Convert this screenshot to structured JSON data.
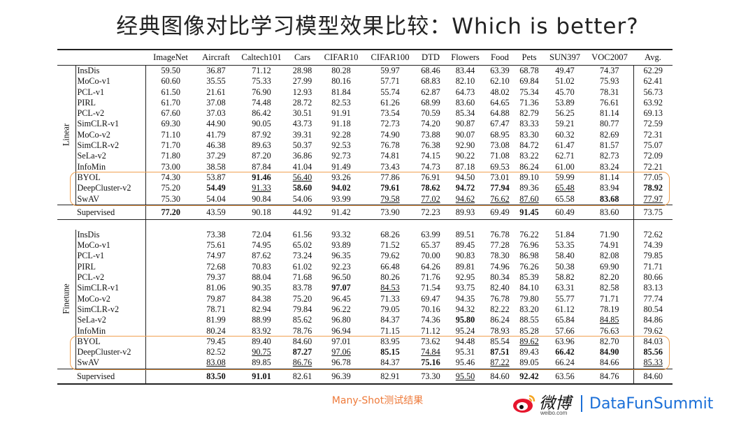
{
  "title": "经典图像对比学习模型效果比较：Which is better?",
  "table": {
    "headers": [
      "",
      "",
      "ImageNet",
      "Aircraft",
      "Caltech101",
      "Cars",
      "CIFAR10",
      "CIFAR100",
      "DTD",
      "Flowers",
      "Food",
      "Pets",
      "SUN397",
      "VOC2007",
      "Avg."
    ],
    "linear": {
      "group_label": "Linear",
      "rows": [
        {
          "method": "InsDis",
          "values": [
            "59.50",
            "36.87",
            "71.12",
            "28.98",
            "80.28",
            "59.97",
            "68.46",
            "83.44",
            "63.39",
            "68.78",
            "49.47",
            "74.37",
            "62.29"
          ]
        },
        {
          "method": "MoCo-v1",
          "values": [
            "60.60",
            "35.55",
            "75.33",
            "27.99",
            "80.16",
            "57.71",
            "68.83",
            "82.10",
            "62.10",
            "69.84",
            "51.02",
            "75.93",
            "62.41"
          ]
        },
        {
          "method": "PCL-v1",
          "values": [
            "61.50",
            "21.61",
            "76.90",
            "12.93",
            "81.84",
            "55.74",
            "62.87",
            "64.73",
            "48.02",
            "75.34",
            "45.70",
            "78.31",
            "56.73"
          ]
        },
        {
          "method": "PIRL",
          "values": [
            "61.70",
            "37.08",
            "74.48",
            "28.72",
            "82.53",
            "61.26",
            "68.99",
            "83.60",
            "64.65",
            "71.36",
            "53.89",
            "76.61",
            "63.92"
          ]
        },
        {
          "method": "PCL-v2",
          "values": [
            "67.60",
            "37.03",
            "86.42",
            "30.51",
            "91.91",
            "73.54",
            "70.59",
            "85.34",
            "64.88",
            "82.79",
            "56.25",
            "81.14",
            "69.13"
          ]
        },
        {
          "method": "SimCLR-v1",
          "values": [
            "69.30",
            "44.90",
            "90.05",
            "43.73",
            "91.18",
            "72.73",
            "74.20",
            "90.87",
            "67.47",
            "83.33",
            "59.21",
            "80.77",
            "72.59"
          ]
        },
        {
          "method": "MoCo-v2",
          "values": [
            "71.10",
            "41.79",
            "87.92",
            "39.31",
            "92.28",
            "74.90",
            "73.88",
            "90.07",
            "68.95",
            "83.30",
            "60.32",
            "82.69",
            "72.31"
          ]
        },
        {
          "method": "SimCLR-v2",
          "values": [
            "71.70",
            "46.38",
            "89.63",
            "50.37",
            "92.53",
            "76.78",
            "76.38",
            "92.90",
            "73.08",
            "84.72",
            "61.47",
            "81.57",
            "75.07"
          ]
        },
        {
          "method": "SeLa-v2",
          "values": [
            "71.80",
            "37.29",
            "87.20",
            "36.86",
            "92.73",
            "74.81",
            "74.15",
            "90.22",
            "71.08",
            "83.22",
            "62.71",
            "82.73",
            "72.09"
          ]
        },
        {
          "method": "InfoMin",
          "values": [
            "73.00",
            "38.58",
            "87.84",
            "41.04",
            "91.49",
            "73.43",
            "74.73",
            "87.18",
            "69.53",
            "86.24",
            "61.00",
            "83.24",
            "72.21"
          ]
        },
        {
          "method": "BYOL",
          "values": [
            "74.30",
            "53.87",
            "91.46",
            "56.40",
            "93.26",
            "77.86",
            "76.91",
            "94.50",
            "73.01",
            "89.10",
            "59.99",
            "81.14",
            "77.05"
          ]
        },
        {
          "method": "DeepCluster-v2",
          "values": [
            "75.20",
            "54.49",
            "91.33",
            "58.60",
            "94.02",
            "79.61",
            "78.62",
            "94.72",
            "77.94",
            "89.36",
            "65.48",
            "83.94",
            "78.92"
          ]
        },
        {
          "method": "SwAV",
          "values": [
            "75.30",
            "54.04",
            "90.84",
            "54.06",
            "93.99",
            "79.58",
            "77.02",
            "94.62",
            "76.62",
            "87.60",
            "65.58",
            "83.68",
            "77.97"
          ]
        }
      ],
      "supervised": {
        "method": "Supervised",
        "values": [
          "77.20",
          "43.59",
          "90.18",
          "44.92",
          "91.42",
          "73.90",
          "72.23",
          "89.93",
          "69.49",
          "91.45",
          "60.49",
          "83.60",
          "73.75"
        ]
      }
    },
    "finetune": {
      "group_label": "Finetune",
      "rows": [
        {
          "method": "InsDis",
          "values": [
            "",
            "73.38",
            "72.04",
            "61.56",
            "93.32",
            "68.26",
            "63.99",
            "89.51",
            "76.78",
            "76.22",
            "51.84",
            "71.90",
            "72.62"
          ]
        },
        {
          "method": "MoCo-v1",
          "values": [
            "",
            "75.61",
            "74.95",
            "65.02",
            "93.89",
            "71.52",
            "65.37",
            "89.45",
            "77.28",
            "76.96",
            "53.35",
            "74.91",
            "74.39"
          ]
        },
        {
          "method": "PCL-v1",
          "values": [
            "",
            "74.97",
            "87.62",
            "73.24",
            "96.35",
            "79.62",
            "70.00",
            "90.83",
            "78.30",
            "86.98",
            "58.40",
            "82.08",
            "79.85"
          ]
        },
        {
          "method": "PIRL",
          "values": [
            "",
            "72.68",
            "70.83",
            "61.02",
            "92.23",
            "66.48",
            "64.26",
            "89.81",
            "74.96",
            "76.26",
            "50.38",
            "69.90",
            "71.71"
          ]
        },
        {
          "method": "PCL-v2",
          "values": [
            "",
            "79.37",
            "88.04",
            "71.68",
            "96.50",
            "80.26",
            "71.76",
            "92.95",
            "80.34",
            "85.39",
            "58.82",
            "82.20",
            "80.66"
          ]
        },
        {
          "method": "SimCLR-v1",
          "values": [
            "",
            "81.06",
            "90.35",
            "83.78",
            "97.07",
            "84.53",
            "71.54",
            "93.75",
            "82.40",
            "84.10",
            "63.31",
            "82.58",
            "83.13"
          ]
        },
        {
          "method": "MoCo-v2",
          "values": [
            "",
            "79.87",
            "84.38",
            "75.20",
            "96.45",
            "71.33",
            "69.47",
            "94.35",
            "76.78",
            "79.80",
            "55.77",
            "71.71",
            "77.74"
          ]
        },
        {
          "method": "SimCLR-v2",
          "values": [
            "",
            "78.71",
            "82.94",
            "79.84",
            "96.22",
            "79.05",
            "70.16",
            "94.32",
            "82.22",
            "83.20",
            "61.12",
            "78.19",
            "80.54"
          ]
        },
        {
          "method": "SeLa-v2",
          "values": [
            "",
            "81.99",
            "88.99",
            "85.62",
            "96.80",
            "84.37",
            "74.36",
            "95.80",
            "86.24",
            "88.55",
            "65.84",
            "84.85",
            "84.86"
          ]
        },
        {
          "method": "InfoMin",
          "values": [
            "",
            "80.24",
            "83.92",
            "78.76",
            "96.94",
            "71.15",
            "71.12",
            "95.24",
            "78.93",
            "85.28",
            "57.66",
            "76.63",
            "79.62"
          ]
        },
        {
          "method": "BYOL",
          "values": [
            "",
            "79.45",
            "89.40",
            "84.60",
            "97.01",
            "83.95",
            "73.62",
            "94.48",
            "85.54",
            "89.62",
            "63.96",
            "82.70",
            "84.03"
          ]
        },
        {
          "method": "DeepCluster-v2",
          "values": [
            "",
            "82.52",
            "90.75",
            "87.27",
            "97.06",
            "85.15",
            "74.84",
            "95.31",
            "87.51",
            "89.43",
            "66.42",
            "84.90",
            "85.56"
          ]
        },
        {
          "method": "SwAV",
          "values": [
            "",
            "83.08",
            "89.85",
            "86.76",
            "96.78",
            "84.37",
            "75.16",
            "95.46",
            "87.22",
            "89.05",
            "66.24",
            "84.66",
            "85.33"
          ]
        }
      ],
      "supervised": {
        "method": "Supervised",
        "values": [
          "",
          "83.50",
          "91.01",
          "82.61",
          "96.39",
          "82.91",
          "73.30",
          "95.50",
          "84.60",
          "92.42",
          "63.56",
          "84.76",
          "84.60"
        ]
      }
    }
  },
  "caption": "Many-Shot测试结果",
  "brand": {
    "weibo": "微博",
    "weibo_sub": "weibo.com",
    "name": "DataFunSummit"
  },
  "colors": {
    "highlight": "#f0a050",
    "caption": "#ee7a3a",
    "brand": "#1a6fd8"
  },
  "icons": {
    "weibo": "weibo-logo-icon"
  }
}
